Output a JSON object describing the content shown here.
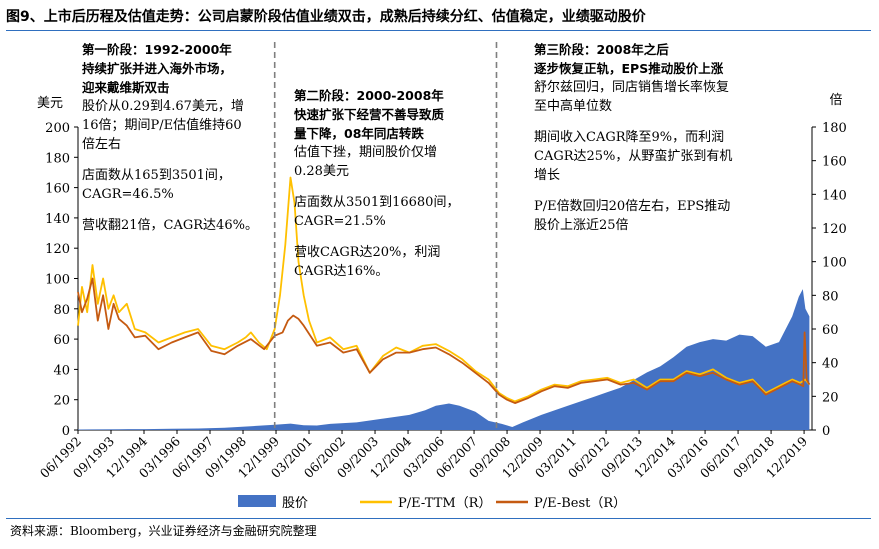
{
  "figure_title": "图9、上市后历程及估值走势：公司启蒙阶段估值业绩双击，成熟后持续分红、估值稳定，业绩驱动股价",
  "source": "资料来源：Bloomberg，兴业证券经济与金融研究院整理",
  "colors": {
    "price": "#4472c4",
    "pe_ttm": "#ffc000",
    "pe_best": "#c55a11",
    "rule": "#2f6fbf"
  },
  "annotations": {
    "stage1": {
      "heading": [
        "第一阶段：1992-2000年",
        "持续扩张并进入海外市场，",
        "迎来戴维斯双击"
      ],
      "body1": [
        "股价从0.29到4.67美元，增",
        "16倍；期间P/E估值维持60",
        "倍左右"
      ],
      "body2": [
        "店面数从165到3501间，",
        "CAGR=46.5%"
      ],
      "body3": [
        "营收翻21倍，CAGR达46%。"
      ]
    },
    "stage2": {
      "heading": [
        "第二阶段：2000-2008年",
        "快速扩张下经营不善导致质",
        "量下降，08年同店转跌"
      ],
      "body1": [
        "估值下挫，期间股价仅增",
        "0.28美元"
      ],
      "body2": [
        "店面数从3501到16680间，",
        "CAGR=21.5%"
      ],
      "body3": [
        "营收CAGR达20%，利润",
        "CAGR达16%。"
      ]
    },
    "stage3": {
      "heading": [
        "第三阶段：2008年之后",
        "逐步恢复正轨，EPS推动股价上涨"
      ],
      "body1": [
        "舒尔兹回归，同店销售增长率恢复",
        "至中高单位数"
      ],
      "body2": [
        "期间收入CAGR降至9%，而利润",
        "CAGR达25%，从野蛮扩张到有机",
        "增长"
      ],
      "body3": [
        "P/E倍数回归20倍左右，EPS推动",
        "股价上涨近25倍"
      ]
    }
  },
  "chart_data": {
    "type": "area",
    "title": "",
    "left_axis": {
      "label": "美元",
      "min": 0,
      "max": 200,
      "ticks": [
        0,
        20,
        40,
        60,
        80,
        100,
        120,
        140,
        160,
        180,
        200
      ]
    },
    "right_axis": {
      "label": "倍",
      "min": 0,
      "max": 180,
      "ticks": [
        0,
        20,
        40,
        60,
        80,
        100,
        120,
        140,
        160,
        180
      ]
    },
    "x_tick_labels": [
      "06/1992",
      "09/1993",
      "12/1994",
      "03/1996",
      "06/1997",
      "09/1998",
      "12/1999",
      "03/2001",
      "06/2002",
      "09/2003",
      "12/2004",
      "03/2006",
      "06/2007",
      "09/2008",
      "12/2009",
      "03/2011",
      "06/2012",
      "09/2013",
      "12/2014",
      "03/2016",
      "06/2017",
      "09/2018",
      "12/2019"
    ],
    "x_range": [
      1992.45,
      2020.25
    ],
    "stage_dividers": [
      1999.9,
      2008.3
    ],
    "legend": {
      "position": "bottom",
      "items": [
        "股价",
        "P/E-TTM（R）",
        "P/E-Best（R）"
      ]
    },
    "series": [
      {
        "name": "股价",
        "axis": "left",
        "style": "area",
        "x": [
          1992.45,
          1993.0,
          1994.0,
          1995.0,
          1996.0,
          1997.0,
          1998.0,
          1999.0,
          1999.9,
          2000.5,
          2001.0,
          2001.5,
          2002.0,
          2003.0,
          2004.0,
          2005.0,
          2005.6,
          2006.0,
          2006.5,
          2006.9,
          2007.5,
          2008.0,
          2008.5,
          2008.9,
          2009.3,
          2010.0,
          2011.0,
          2012.0,
          2012.5,
          2013.0,
          2013.5,
          2014.0,
          2014.5,
          2015.0,
          2015.5,
          2016.0,
          2016.5,
          2017.0,
          2017.5,
          2018.0,
          2018.5,
          2019.0,
          2019.5,
          2019.75,
          2019.9,
          2020.0,
          2020.15
        ],
        "y": [
          0.3,
          0.4,
          0.5,
          0.6,
          0.8,
          1.0,
          1.5,
          2.5,
          3.5,
          4.2,
          3.2,
          3.0,
          4.0,
          5.0,
          7.5,
          10.0,
          13.0,
          16.0,
          17.5,
          16.0,
          12.0,
          6.0,
          4.0,
          2.0,
          5.0,
          10.0,
          16.0,
          22.0,
          25.0,
          28.0,
          33.0,
          38.0,
          42.0,
          48.0,
          55.0,
          58.0,
          60.0,
          59.0,
          63.0,
          62.0,
          55.0,
          58.0,
          75.0,
          88.0,
          93.0,
          80.0,
          75.0
        ]
      },
      {
        "name": "P/E-TTM（R）",
        "axis": "right",
        "style": "line",
        "x": [
          1992.45,
          1992.6,
          1992.8,
          1993.0,
          1993.2,
          1993.4,
          1993.6,
          1993.8,
          1994.0,
          1994.3,
          1994.6,
          1995.0,
          1995.5,
          1996.0,
          1996.5,
          1997.0,
          1997.5,
          1998.0,
          1998.5,
          1998.8,
          1999.0,
          1999.3,
          1999.6,
          1999.9,
          2000.1,
          2000.3,
          2000.5,
          2000.65,
          2000.8,
          2001.0,
          2001.2,
          2001.5,
          2002.0,
          2002.5,
          2003.0,
          2003.5,
          2004.0,
          2004.5,
          2005.0,
          2005.5,
          2006.0,
          2006.5,
          2007.0,
          2007.5,
          2008.0,
          2008.4,
          2008.7,
          2009.0,
          2009.5,
          2010.0,
          2010.5,
          2011.0,
          2011.5,
          2012.0,
          2012.5,
          2013.0,
          2013.5,
          2014.0,
          2014.5,
          2015.0,
          2015.5,
          2016.0,
          2016.5,
          2017.0,
          2017.5,
          2018.0,
          2018.5,
          2019.0,
          2019.5,
          2019.8,
          2020.0,
          2020.15
        ],
        "y": [
          62,
          85,
          70,
          98,
          75,
          90,
          72,
          80,
          70,
          75,
          60,
          58,
          52,
          55,
          58,
          60,
          50,
          48,
          52,
          55,
          58,
          52,
          48,
          60,
          80,
          110,
          150,
          135,
          100,
          80,
          65,
          52,
          55,
          48,
          50,
          34,
          44,
          49,
          46,
          50,
          51,
          47,
          42,
          35,
          30,
          22,
          19,
          17,
          20,
          24,
          27,
          26,
          29,
          30,
          31,
          28,
          30,
          25,
          30,
          30,
          35,
          33,
          36,
          31,
          28,
          30,
          22,
          26,
          30,
          28,
          30,
          27
        ]
      },
      {
        "name": "P/E-Best（R）",
        "axis": "right",
        "style": "line",
        "x": [
          1992.45,
          1992.6,
          1992.8,
          1993.0,
          1993.2,
          1993.4,
          1993.6,
          1993.8,
          1994.0,
          1994.3,
          1994.6,
          1995.0,
          1995.5,
          1996.0,
          1996.5,
          1997.0,
          1997.5,
          1998.0,
          1998.5,
          1999.0,
          1999.5,
          1999.9,
          2000.2,
          2000.4,
          2000.6,
          2000.8,
          2001.0,
          2001.5,
          2002.0,
          2002.5,
          2003.0,
          2003.5,
          2004.0,
          2004.5,
          2005.0,
          2005.5,
          2006.0,
          2006.5,
          2007.0,
          2007.5,
          2008.0,
          2008.4,
          2008.7,
          2009.0,
          2009.5,
          2010.0,
          2010.5,
          2011.0,
          2011.5,
          2012.0,
          2012.5,
          2013.0,
          2013.5,
          2014.0,
          2014.5,
          2015.0,
          2015.5,
          2016.0,
          2016.5,
          2017.0,
          2017.5,
          2018.0,
          2018.5,
          2019.0,
          2019.5,
          2019.8,
          2019.92,
          2019.97,
          2020.05,
          2020.15
        ],
        "y": [
          82,
          70,
          78,
          90,
          65,
          80,
          60,
          75,
          66,
          62,
          55,
          56,
          48,
          52,
          55,
          58,
          47,
          45,
          50,
          54,
          48,
          56,
          58,
          65,
          68,
          66,
          62,
          50,
          52,
          46,
          48,
          34,
          42,
          46,
          46,
          48,
          49,
          45,
          40,
          34,
          28,
          21,
          18,
          16,
          19,
          23,
          26,
          25,
          28,
          29,
          30,
          27,
          28,
          24,
          29,
          29,
          34,
          32,
          34,
          30,
          27,
          29,
          21,
          25,
          29,
          27,
          26,
          58,
          30,
          27
        ]
      }
    ]
  }
}
